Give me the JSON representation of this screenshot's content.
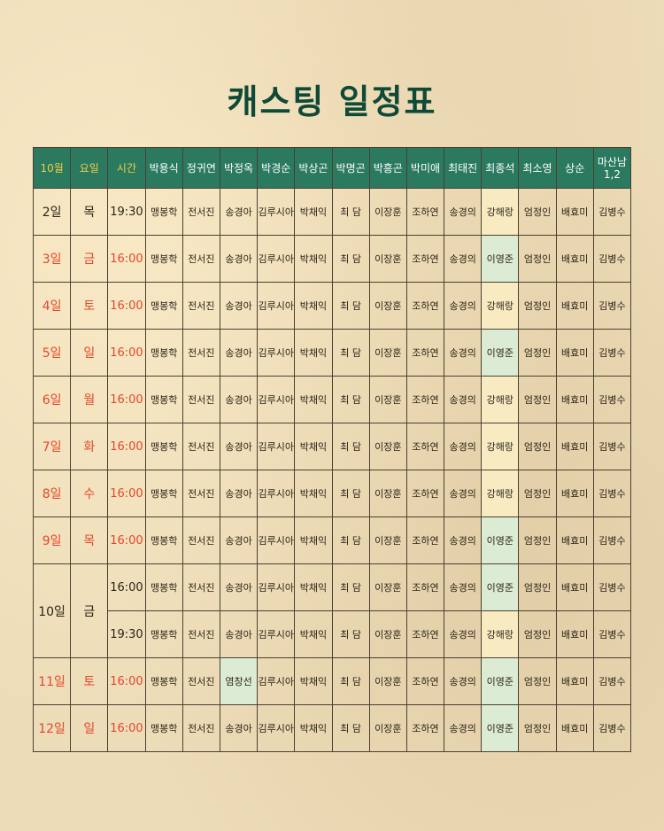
{
  "title": "캐스팅 일정표",
  "colors": {
    "header_bg": "#2b7a5f",
    "title": "#0f4a38",
    "accent_red": "#e4472c",
    "header_yellow": "#f2cc47",
    "highlight_yellow": "#f8ebc2",
    "highlight_green": "#dcebd4"
  },
  "headers": [
    "10월",
    "요일",
    "시간",
    "박용식",
    "정귀연",
    "박정옥",
    "박경순",
    "박상곤",
    "박명곤",
    "박흥곤",
    "박미애",
    "최태진",
    "최종석",
    "최소영",
    "상순",
    "마산남 1,2"
  ],
  "rows": [
    {
      "date": "2일",
      "day": "목",
      "time": "19:30",
      "red": false,
      "cast": [
        "맹봉학",
        "전서진",
        "송경아",
        "김루시아",
        "박채익",
        "최 담",
        "이장훈",
        "조하연",
        "송경의",
        "강해랑",
        "엄정인",
        "배효미",
        "김병수"
      ]
    },
    {
      "date": "3일",
      "day": "금",
      "time": "16:00",
      "red": true,
      "cast": [
        "맹봉학",
        "전서진",
        "송경아",
        "김루시아",
        "박채익",
        "최 담",
        "이장훈",
        "조하연",
        "송경의",
        "이영준",
        "엄정인",
        "배효미",
        "김병수"
      ]
    },
    {
      "date": "4일",
      "day": "토",
      "time": "16:00",
      "red": true,
      "cast": [
        "맹봉학",
        "전서진",
        "송경아",
        "김루시아",
        "박채익",
        "최 담",
        "이장훈",
        "조하연",
        "송경의",
        "강해랑",
        "엄정인",
        "배효미",
        "김병수"
      ]
    },
    {
      "date": "5일",
      "day": "일",
      "time": "16:00",
      "red": true,
      "cast": [
        "맹봉학",
        "전서진",
        "송경아",
        "김루시아",
        "박채익",
        "최 담",
        "이장훈",
        "조하연",
        "송경의",
        "이영준",
        "엄정인",
        "배효미",
        "김병수"
      ]
    },
    {
      "date": "6일",
      "day": "월",
      "time": "16:00",
      "red": true,
      "cast": [
        "맹봉학",
        "전서진",
        "송경아",
        "김루시아",
        "박채익",
        "최 담",
        "이장훈",
        "조하연",
        "송경의",
        "강해랑",
        "엄정인",
        "배효미",
        "김병수"
      ]
    },
    {
      "date": "7일",
      "day": "화",
      "time": "16:00",
      "red": true,
      "cast": [
        "맹봉학",
        "전서진",
        "송경아",
        "김루시아",
        "박채익",
        "최 담",
        "이장훈",
        "조하연",
        "송경의",
        "강해랑",
        "엄정인",
        "배효미",
        "김병수"
      ]
    },
    {
      "date": "8일",
      "day": "수",
      "time": "16:00",
      "red": true,
      "cast": [
        "맹봉학",
        "전서진",
        "송경아",
        "김루시아",
        "박채익",
        "최 담",
        "이장훈",
        "조하연",
        "송경의",
        "강해랑",
        "엄정인",
        "배효미",
        "김병수"
      ]
    },
    {
      "date": "9일",
      "day": "목",
      "time": "16:00",
      "red": true,
      "cast": [
        "맹봉학",
        "전서진",
        "송경아",
        "김루시아",
        "박채익",
        "최 담",
        "이장훈",
        "조하연",
        "송경의",
        "이영준",
        "엄정인",
        "배효미",
        "김병수"
      ]
    },
    {
      "date": "10일",
      "day": "금",
      "time": "16:00",
      "red": false,
      "span": 2,
      "cast": [
        "맹봉학",
        "전서진",
        "송경아",
        "김루시아",
        "박채익",
        "최 담",
        "이장훈",
        "조하연",
        "송경의",
        "이영준",
        "엄정인",
        "배효미",
        "김병수"
      ]
    },
    {
      "time": "19:30",
      "red": false,
      "cont": true,
      "cast": [
        "맹봉학",
        "전서진",
        "송경아",
        "김루시아",
        "박채익",
        "최 담",
        "이장훈",
        "조하연",
        "송경의",
        "강해랑",
        "엄정인",
        "배효미",
        "김병수"
      ]
    },
    {
      "date": "11일",
      "day": "토",
      "time": "16:00",
      "red": true,
      "cast": [
        "맹봉학",
        "전서진",
        "염창선",
        "김루시아",
        "박채익",
        "최 담",
        "이장훈",
        "조하연",
        "송경의",
        "이영준",
        "엄정인",
        "배효미",
        "김병수"
      ]
    },
    {
      "date": "12일",
      "day": "일",
      "time": "16:00",
      "red": true,
      "cast": [
        "맹봉학",
        "전서진",
        "송경아",
        "김루시아",
        "박채익",
        "최 담",
        "이장훈",
        "조하연",
        "송경의",
        "이영준",
        "엄정인",
        "배효미",
        "김병수"
      ]
    }
  ]
}
